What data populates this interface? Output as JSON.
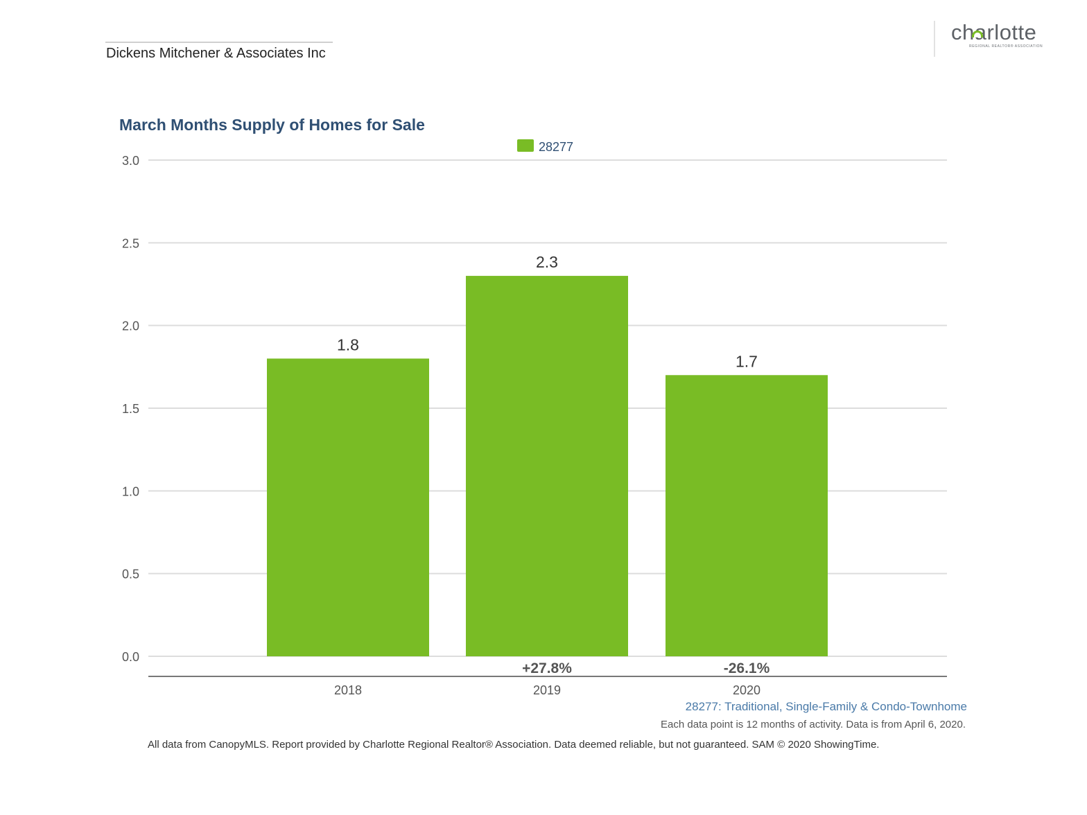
{
  "header": {
    "company": "Dickens Mitchener & Associates Inc",
    "logo_word": "charlotte",
    "logo_subtitle": "REGIONAL REALTOR® ASSOCIATION"
  },
  "colors": {
    "bar": "#79bc25",
    "title": "#2f4f73",
    "grid": "#dddddd",
    "axis": "#777777"
  },
  "chart_data": {
    "type": "bar",
    "title": "March Months Supply of Homes for Sale",
    "categories": [
      "2018",
      "2019",
      "2020"
    ],
    "series": [
      {
        "name": "28277",
        "values": [
          1.8,
          2.3,
          1.7
        ]
      }
    ],
    "value_labels": [
      "1.8",
      "2.3",
      "1.7"
    ],
    "change_labels": [
      "",
      "+27.8%",
      "-26.1%"
    ],
    "y_ticks": [
      "0.0",
      "0.5",
      "1.0",
      "1.5",
      "2.0",
      "2.5",
      "3.0"
    ],
    "ylim": [
      0,
      3.0
    ],
    "grid": true,
    "legend_position": "top-center",
    "xlabel": "",
    "ylabel": ""
  },
  "notes": {
    "axis_note": "28277: Traditional, Single-Family & Condo-Townhome",
    "data_note": "Each data point is 12 months of activity. Data is from April 6, 2020.",
    "footer": "All data from CanopyMLS. Report provided by Charlotte Regional Realtor® Association. Data deemed reliable, but not guaranteed. SAM © 2020 ShowingTime."
  }
}
